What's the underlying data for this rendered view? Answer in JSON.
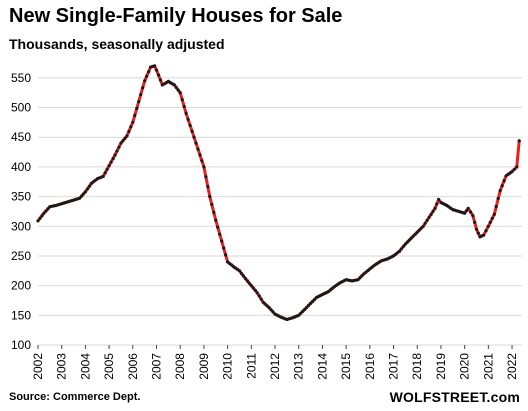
{
  "chart_data": {
    "type": "line",
    "title": "New Single-Family Houses for Sale",
    "subtitle": "Thousands, seasonally adjusted",
    "source": "Source: Commerce Dept.",
    "brand": "WOLFSTREET.com",
    "ylim": [
      100,
      580
    ],
    "yticks": [
      100,
      150,
      200,
      250,
      300,
      350,
      400,
      450,
      500,
      550
    ],
    "xticks": [
      "2002",
      "2003",
      "2004",
      "2005",
      "2006",
      "2007",
      "2008",
      "2009",
      "2010",
      "2011",
      "2012",
      "2013",
      "2014",
      "2015",
      "2016",
      "2017",
      "2018",
      "2019",
      "2020",
      "2021",
      "2022"
    ],
    "grid": "horizontal",
    "colors": {
      "line": "#e8201d",
      "markers": "#1a1a1a",
      "grid": "#d9d9d9"
    },
    "series": [
      {
        "points": [
          [
            2002.0,
            309
          ],
          [
            2002.25,
            322
          ],
          [
            2002.5,
            333
          ],
          [
            2002.75,
            335
          ],
          [
            2003.0,
            338
          ],
          [
            2003.25,
            341
          ],
          [
            2003.5,
            344
          ],
          [
            2003.75,
            347
          ],
          [
            2004.0,
            358
          ],
          [
            2004.25,
            372
          ],
          [
            2004.5,
            380
          ],
          [
            2004.75,
            384
          ],
          [
            2005.0,
            402
          ],
          [
            2005.25,
            420
          ],
          [
            2005.5,
            440
          ],
          [
            2005.75,
            452
          ],
          [
            2006.0,
            475
          ],
          [
            2006.25,
            510
          ],
          [
            2006.5,
            545
          ],
          [
            2006.75,
            568
          ],
          [
            2006.92,
            570
          ],
          [
            2007.0,
            563
          ],
          [
            2007.25,
            538
          ],
          [
            2007.5,
            544
          ],
          [
            2007.75,
            538
          ],
          [
            2008.0,
            525
          ],
          [
            2008.25,
            490
          ],
          [
            2008.5,
            460
          ],
          [
            2008.75,
            430
          ],
          [
            2009.0,
            400
          ],
          [
            2009.25,
            350
          ],
          [
            2009.5,
            310
          ],
          [
            2009.75,
            275
          ],
          [
            2010.0,
            240
          ],
          [
            2010.25,
            232
          ],
          [
            2010.5,
            225
          ],
          [
            2010.75,
            212
          ],
          [
            2011.0,
            200
          ],
          [
            2011.25,
            188
          ],
          [
            2011.5,
            172
          ],
          [
            2011.75,
            163
          ],
          [
            2012.0,
            152
          ],
          [
            2012.25,
            147
          ],
          [
            2012.5,
            143
          ],
          [
            2012.75,
            146
          ],
          [
            2013.0,
            150
          ],
          [
            2013.25,
            160
          ],
          [
            2013.5,
            170
          ],
          [
            2013.75,
            180
          ],
          [
            2014.0,
            185
          ],
          [
            2014.25,
            190
          ],
          [
            2014.5,
            198
          ],
          [
            2014.75,
            205
          ],
          [
            2015.0,
            210
          ],
          [
            2015.25,
            208
          ],
          [
            2015.5,
            210
          ],
          [
            2015.75,
            220
          ],
          [
            2016.0,
            228
          ],
          [
            2016.25,
            236
          ],
          [
            2016.5,
            242
          ],
          [
            2016.75,
            245
          ],
          [
            2017.0,
            250
          ],
          [
            2017.25,
            258
          ],
          [
            2017.5,
            270
          ],
          [
            2017.75,
            280
          ],
          [
            2018.0,
            290
          ],
          [
            2018.25,
            300
          ],
          [
            2018.5,
            315
          ],
          [
            2018.75,
            330
          ],
          [
            2018.9,
            345
          ],
          [
            2019.0,
            340
          ],
          [
            2019.25,
            335
          ],
          [
            2019.5,
            328
          ],
          [
            2019.75,
            325
          ],
          [
            2020.0,
            322
          ],
          [
            2020.15,
            330
          ],
          [
            2020.35,
            318
          ],
          [
            2020.5,
            295
          ],
          [
            2020.65,
            282
          ],
          [
            2020.8,
            285
          ],
          [
            2021.0,
            300
          ],
          [
            2021.25,
            320
          ],
          [
            2021.5,
            360
          ],
          [
            2021.75,
            385
          ],
          [
            2022.0,
            392
          ],
          [
            2022.2,
            400
          ],
          [
            2022.3,
            444
          ]
        ]
      }
    ]
  }
}
